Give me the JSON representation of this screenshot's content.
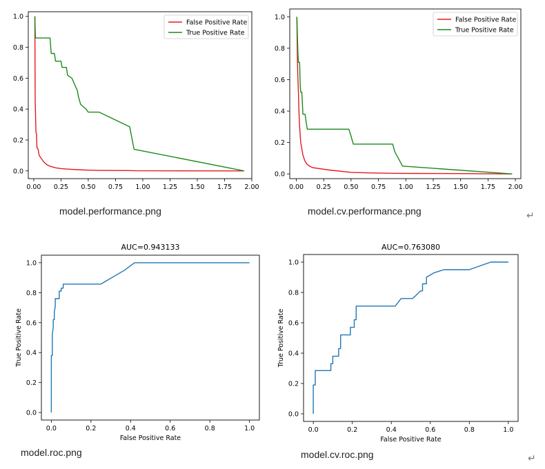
{
  "captions": [
    "model.performance.png",
    "model.cv.performance.png",
    "model.roc.png",
    "model.cv.roc.png"
  ],
  "return_glyph": "↵",
  "colors": {
    "fpr": "#e41a1c",
    "tpr": "#1a8a1a",
    "roc": "#1f77b4"
  },
  "chart_data": [
    {
      "type": "line",
      "title": "",
      "xlabel": "",
      "ylabel": "",
      "xlim": [
        -0.05,
        2.0
      ],
      "ylim": [
        -0.05,
        1.03
      ],
      "xticks": [
        "0.00",
        "0.25",
        "0.50",
        "0.75",
        "1.00",
        "1.25",
        "1.50",
        "1.75",
        "2.00"
      ],
      "xtick_values": [
        0,
        0.25,
        0.5,
        0.75,
        1.0,
        1.25,
        1.5,
        1.75,
        2.0
      ],
      "yticks": [
        "0.0",
        "0.2",
        "0.4",
        "0.6",
        "0.8",
        "1.0"
      ],
      "ytick_values": [
        0,
        0.2,
        0.4,
        0.6,
        0.8,
        1.0
      ],
      "legend": "top-right",
      "series": [
        {
          "name": "False Positive Rate",
          "color": "fpr",
          "x": [
            0.01,
            0.013,
            0.015,
            0.02,
            0.025,
            0.03,
            0.04,
            0.05,
            0.06,
            0.07,
            0.09,
            0.12,
            0.15,
            0.2,
            0.25,
            0.3,
            0.4,
            0.5,
            0.6,
            0.88,
            0.93,
            1.93
          ],
          "y": [
            1.0,
            0.45,
            0.4,
            0.25,
            0.24,
            0.15,
            0.14,
            0.1,
            0.09,
            0.08,
            0.06,
            0.04,
            0.03,
            0.02,
            0.015,
            0.012,
            0.008,
            0.005,
            0.003,
            0.002,
            0.001,
            0.0
          ]
        },
        {
          "name": "True Positive Rate",
          "color": "tpr",
          "x": [
            0.01,
            0.015,
            0.02,
            0.025,
            0.03,
            0.15,
            0.16,
            0.17,
            0.18,
            0.19,
            0.2,
            0.25,
            0.26,
            0.3,
            0.31,
            0.35,
            0.4,
            0.41,
            0.43,
            0.48,
            0.5,
            0.6,
            0.88,
            0.92,
            1.93
          ],
          "y": [
            1.0,
            0.86,
            0.86,
            0.86,
            0.86,
            0.86,
            0.76,
            0.76,
            0.76,
            0.76,
            0.71,
            0.71,
            0.67,
            0.67,
            0.62,
            0.6,
            0.52,
            0.48,
            0.43,
            0.4,
            0.38,
            0.38,
            0.285,
            0.14,
            0.0
          ]
        }
      ]
    },
    {
      "type": "line",
      "title": "",
      "xlabel": "",
      "ylabel": "",
      "xlim": [
        -0.06,
        2.05
      ],
      "ylim": [
        -0.03,
        1.05
      ],
      "xticks": [
        "0.00",
        "0.25",
        "0.50",
        "0.75",
        "1.00",
        "1.25",
        "1.50",
        "1.75",
        "2.00"
      ],
      "xtick_values": [
        0,
        0.25,
        0.5,
        0.75,
        1.0,
        1.25,
        1.5,
        1.75,
        2.0
      ],
      "yticks": [
        "0.0",
        "0.2",
        "0.4",
        "0.6",
        "0.8",
        "1.0"
      ],
      "ytick_values": [
        0,
        0.2,
        0.4,
        0.6,
        0.8,
        1.0
      ],
      "legend": "top-right",
      "series": [
        {
          "name": "False Positive Rate",
          "color": "fpr",
          "x": [
            0.005,
            0.01,
            0.015,
            0.02,
            0.025,
            0.03,
            0.035,
            0.04,
            0.05,
            0.06,
            0.07,
            0.08,
            0.1,
            0.12,
            0.15,
            0.3,
            0.5,
            0.7,
            0.9,
            1.1,
            1.5,
            1.97
          ],
          "y": [
            1.0,
            0.72,
            0.6,
            0.5,
            0.38,
            0.3,
            0.25,
            0.2,
            0.16,
            0.12,
            0.1,
            0.08,
            0.06,
            0.05,
            0.04,
            0.025,
            0.01,
            0.006,
            0.004,
            0.003,
            0.002,
            0.0
          ]
        },
        {
          "name": "True Positive Rate",
          "color": "tpr",
          "x": [
            0.005,
            0.015,
            0.02,
            0.03,
            0.035,
            0.04,
            0.05,
            0.06,
            0.07,
            0.08,
            0.09,
            0.1,
            0.12,
            0.48,
            0.5,
            0.52,
            0.88,
            0.9,
            0.97,
            1.97
          ],
          "y": [
            1.0,
            0.76,
            0.71,
            0.71,
            0.57,
            0.52,
            0.52,
            0.38,
            0.38,
            0.38,
            0.33,
            0.285,
            0.285,
            0.285,
            0.24,
            0.19,
            0.19,
            0.14,
            0.05,
            0.0
          ]
        }
      ]
    },
    {
      "type": "line",
      "title": "AUC=0.943133",
      "xlabel": "False Positive Rate",
      "ylabel": "True Positive Rate",
      "xlim": [
        -0.05,
        1.05
      ],
      "ylim": [
        -0.05,
        1.05
      ],
      "xticks": [
        "0.0",
        "0.2",
        "0.4",
        "0.6",
        "0.8",
        "1.0"
      ],
      "xtick_values": [
        0,
        0.2,
        0.4,
        0.6,
        0.8,
        1.0
      ],
      "yticks": [
        "0.0",
        "0.2",
        "0.4",
        "0.6",
        "0.8",
        "1.0"
      ],
      "ytick_values": [
        0,
        0.2,
        0.4,
        0.6,
        0.8,
        1.0
      ],
      "legend": "none",
      "series": [
        {
          "color": "roc",
          "x": [
            0.0,
            0.0,
            0.005,
            0.005,
            0.01,
            0.01,
            0.015,
            0.015,
            0.02,
            0.02,
            0.03,
            0.03,
            0.04,
            0.04,
            0.05,
            0.05,
            0.06,
            0.06,
            0.25,
            0.37,
            0.42,
            0.42,
            1.0
          ],
          "y": [
            0.0,
            0.38,
            0.38,
            0.52,
            0.57,
            0.62,
            0.62,
            0.67,
            0.71,
            0.76,
            0.76,
            0.76,
            0.76,
            0.81,
            0.81,
            0.83,
            0.83,
            0.857,
            0.857,
            0.95,
            1.0,
            1.0,
            1.0
          ]
        }
      ]
    },
    {
      "type": "line",
      "title": "AUC=0.763080",
      "xlabel": "False Positive Rate",
      "ylabel": "True Positive Rate",
      "xlim": [
        -0.05,
        1.05
      ],
      "ylim": [
        -0.05,
        1.05
      ],
      "xticks": [
        "0.0",
        "0.2",
        "0.4",
        "0.6",
        "0.8",
        "1.0"
      ],
      "xtick_values": [
        0,
        0.2,
        0.4,
        0.6,
        0.8,
        1.0
      ],
      "yticks": [
        "0.0",
        "0.2",
        "0.4",
        "0.6",
        "0.8",
        "1.0"
      ],
      "ytick_values": [
        0,
        0.2,
        0.4,
        0.6,
        0.8,
        1.0
      ],
      "legend": "none",
      "series": [
        {
          "color": "roc",
          "x": [
            0.0,
            0.0,
            0.01,
            0.01,
            0.09,
            0.09,
            0.1,
            0.1,
            0.12,
            0.12,
            0.13,
            0.13,
            0.14,
            0.14,
            0.15,
            0.15,
            0.19,
            0.19,
            0.2,
            0.2,
            0.21,
            0.21,
            0.22,
            0.22,
            0.42,
            0.45,
            0.51,
            0.51,
            0.55,
            0.55,
            0.56,
            0.56,
            0.57,
            0.57,
            0.58,
            0.58,
            0.62,
            0.67,
            0.8,
            0.8,
            0.91,
            0.91,
            1.0
          ],
          "y": [
            0.0,
            0.19,
            0.19,
            0.285,
            0.285,
            0.33,
            0.33,
            0.38,
            0.38,
            0.38,
            0.38,
            0.43,
            0.43,
            0.52,
            0.52,
            0.52,
            0.52,
            0.57,
            0.57,
            0.57,
            0.57,
            0.62,
            0.62,
            0.71,
            0.71,
            0.76,
            0.76,
            0.76,
            0.81,
            0.81,
            0.81,
            0.857,
            0.857,
            0.857,
            0.857,
            0.9,
            0.93,
            0.95,
            0.95,
            0.95,
            1.0,
            1.0,
            1.0
          ]
        }
      ]
    }
  ]
}
